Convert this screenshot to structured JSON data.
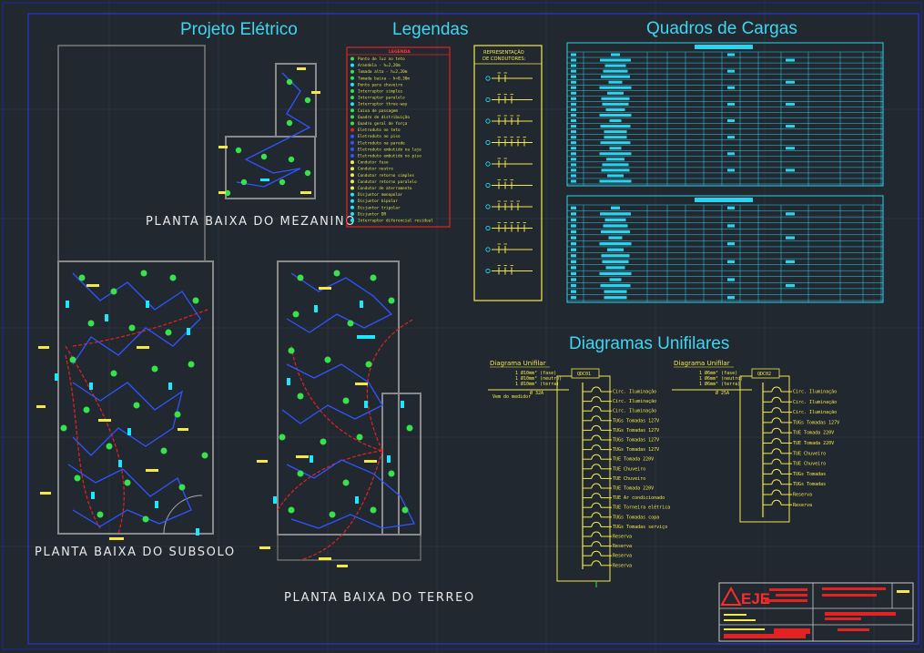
{
  "headings": {
    "project": "Projeto Elétrico",
    "legend": "Legendas",
    "loads": "Quadros de Cargas",
    "unifilar": "Diagramas Unifilares"
  },
  "plans": {
    "mezanino": "PLANTA BAIXA DO MEZANINO",
    "subsolo": "PLANTA BAIXA DO SUBSOLO",
    "terreo": "PLANTA BAIXA DO TERREO"
  },
  "legend": {
    "title": "LEGENDA",
    "items": [
      "Ponto de luz no teto",
      "Arandela - h=2,20m",
      "Tomada alta - h=2,20m",
      "Tomada baixa - h=0,30m",
      "Ponto para chuveiro",
      "Interruptor simples",
      "Interruptor paralelo",
      "Interruptor three-way",
      "Caixa de passagem",
      "Quadro de distribuição",
      "Quadro geral de força",
      "Eletroduto no teto",
      "Eletroduto no piso",
      "Eletroduto na parede",
      "Eletroduto embutido na laje",
      "Eletroduto embutido no piso",
      "Condutor fase",
      "Condutor neutro",
      "Condutor retorno simples",
      "Condutor retorno paralelo",
      "Condutor de aterramento",
      "Disjuntor monopolar",
      "Disjuntor bipolar",
      "Disjuntor tripolar",
      "Disjuntor DR",
      "Interruptor diferencial residual"
    ]
  },
  "conductors": {
    "title_line1": "REPRESENTAÇÃO",
    "title_line2": "DE CONDUTORES:"
  },
  "diagrams": {
    "left": {
      "title": "Diagrama Unifilar",
      "panel": "QDC01",
      "feeders": [
        "1 Ø10mm² (fase)",
        "1 Ø10mm² (neutro)",
        "1 Ø10mm² (terra)"
      ],
      "main_breaker": "Ø 32A",
      "source": "Vem do medidor",
      "circuits": [
        "Circ. Iluminação",
        "Circ. Iluminação",
        "Circ. Iluminação",
        "TUGs Tomadas 127V",
        "TUGs Tomadas 127V",
        "TUGs Tomadas 127V",
        "TUGs Tomadas 127V",
        "TUE Tomada 220V",
        "TUE Chuveiro",
        "TUE Chuveiro",
        "TUE Tomada 220V",
        "TUE Ar condicionado",
        "TUE Torneira elétrica",
        "TUGs Tomadas copa",
        "TUGs Tomadas serviço",
        "Reserva",
        "Reserva",
        "Reserva",
        "Reserva"
      ]
    },
    "right": {
      "title": "Diagrama Unifilar",
      "panel": "QDC02",
      "feeders": [
        "1 Ø6mm² (fase)",
        "1 Ø6mm² (neutro)",
        "1 Ø6mm² (terra)"
      ],
      "main_breaker": "Ø 25A",
      "circuits": [
        "Circ. Iluminação",
        "Circ. Iluminação",
        "Circ. Iluminação",
        "TUGs Tomadas 127V",
        "TUE Tomada 220V",
        "TUE Tomada 220V",
        "TUE Chuveiro",
        "TUE Chuveiro",
        "TUGs Tomadas",
        "TUGs Tomadas",
        "Reserva",
        "Reserva"
      ]
    }
  },
  "title_block": {
    "logo": "EJE"
  },
  "colors": {
    "background": "#212830",
    "heading": "#3fd6f2",
    "wire": "#2f55ff",
    "conduit": "#e52222",
    "device": "#1de6ff",
    "outlet": "#37e24a",
    "label": "#f5e94a",
    "table": "#2ad4ee",
    "frame": "#2233cc"
  }
}
